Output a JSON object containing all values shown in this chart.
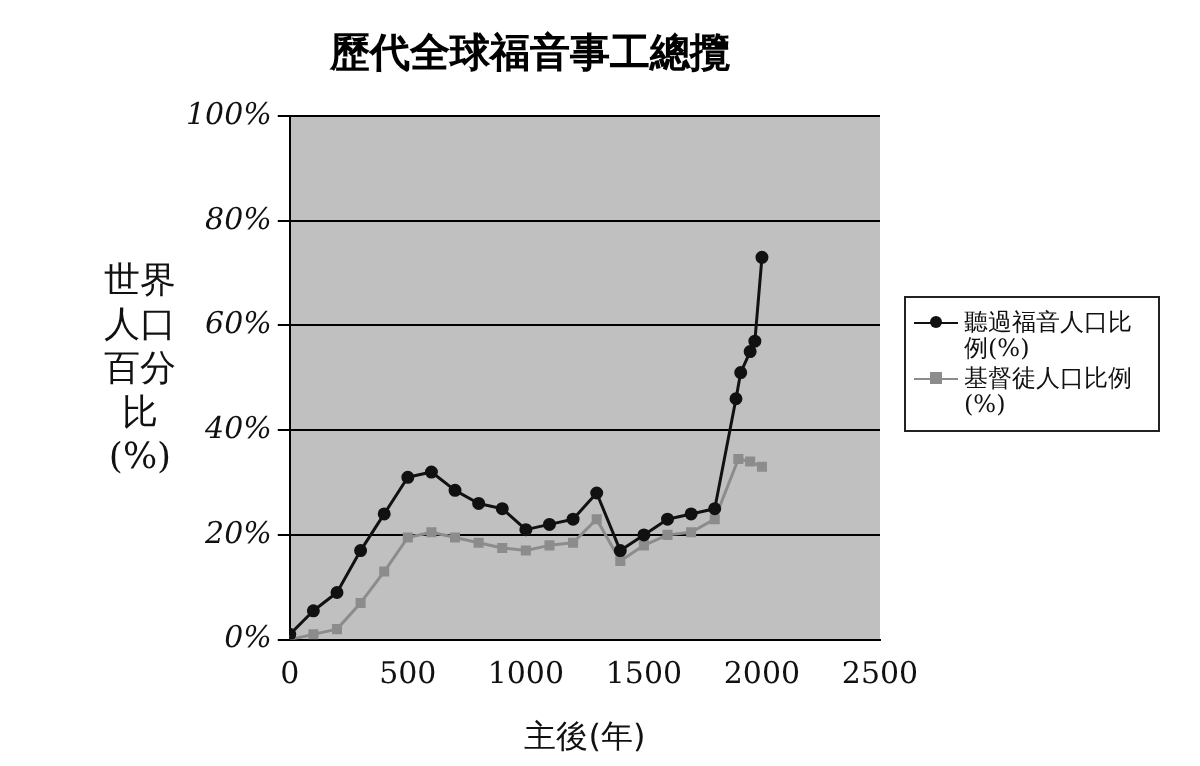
{
  "chart_data": {
    "type": "line",
    "title": "歷代全球福音事工總攬",
    "xlabel": "主後(年)",
    "ylabel": "世界人口百分比(%)",
    "xlim": [
      0,
      2500
    ],
    "xticks": [
      0,
      500,
      1000,
      1500,
      2000,
      2500
    ],
    "ylim": [
      0,
      100
    ],
    "yticks": [
      {
        "value": 0,
        "label": "0%"
      },
      {
        "value": 20,
        "label": "20%"
      },
      {
        "value": 40,
        "label": "40%"
      },
      {
        "value": 60,
        "label": "60%"
      },
      {
        "value": 80,
        "label": "80%"
      },
      {
        "value": 100,
        "label": "100%"
      }
    ],
    "grid": "y",
    "legend": "right",
    "series": [
      {
        "name": "聽過福音人口比例(%)",
        "color": "#111111",
        "marker": "circle",
        "x": [
          0,
          100,
          200,
          300,
          400,
          500,
          600,
          700,
          800,
          900,
          1000,
          1100,
          1200,
          1300,
          1400,
          1500,
          1600,
          1700,
          1800,
          1890,
          1910,
          1950,
          1970,
          2000
        ],
        "values": [
          1,
          5.5,
          9,
          17,
          24,
          31,
          32,
          28.5,
          26,
          25,
          21,
          22,
          23,
          28,
          17,
          20,
          23,
          24,
          25,
          46,
          51,
          55,
          57,
          73
        ]
      },
      {
        "name": "基督徒人口比例(%)",
        "color": "#8c8c8c",
        "marker": "square",
        "x": [
          0,
          100,
          200,
          300,
          400,
          500,
          600,
          700,
          800,
          900,
          1000,
          1100,
          1200,
          1300,
          1400,
          1500,
          1600,
          1700,
          1800,
          1900,
          1950,
          2000
        ],
        "values": [
          0,
          1,
          2,
          7,
          13,
          19.5,
          20.5,
          19.5,
          18.5,
          17.5,
          17,
          18,
          18.5,
          23,
          15,
          18,
          20,
          20.5,
          23,
          34.5,
          34,
          33
        ]
      }
    ]
  }
}
